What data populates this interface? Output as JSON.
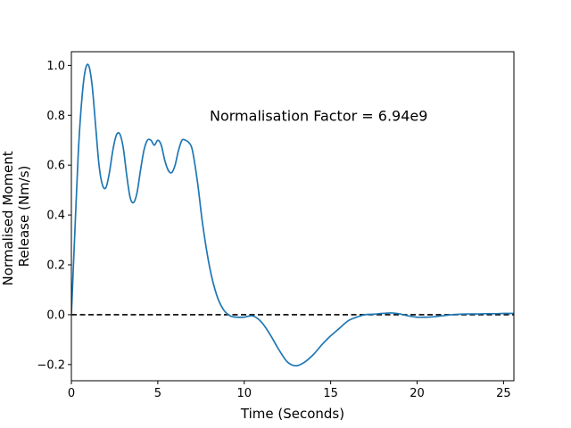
{
  "chart_data": {
    "type": "line",
    "title": "",
    "xlabel": "Time (Seconds)",
    "ylabel_lines": [
      "Normalised Moment",
      "Release (Nm/s)"
    ],
    "xlim": [
      0,
      25.6
    ],
    "ylim": [
      -0.265,
      1.055
    ],
    "xticks": [
      0,
      5,
      10,
      15,
      20,
      25
    ],
    "xtick_labels": [
      "0",
      "5",
      "10",
      "15",
      "20",
      "25"
    ],
    "yticks": [
      -0.2,
      0.0,
      0.2,
      0.4,
      0.6,
      0.8,
      1.0
    ],
    "ytick_labels": [
      "−0.2",
      "0.0",
      "0.2",
      "0.4",
      "0.6",
      "0.8",
      "1.0"
    ],
    "grid": false,
    "annotation": {
      "text": "Normalisation Factor = 6.94e9",
      "x": 8.0,
      "y": 0.8
    },
    "reference_line": {
      "y": 0.0,
      "style": "dashed",
      "color": "#000000"
    },
    "series": [
      {
        "color": "#1f77b4",
        "x": [
          0,
          0.2,
          0.4,
          0.6,
          0.8,
          1.0,
          1.2,
          1.4,
          1.6,
          1.8,
          2.0,
          2.2,
          2.4,
          2.6,
          2.8,
          3.0,
          3.2,
          3.4,
          3.6,
          3.8,
          4.0,
          4.2,
          4.4,
          4.6,
          4.8,
          5.0,
          5.2,
          5.4,
          5.6,
          5.8,
          6.0,
          6.2,
          6.4,
          6.6,
          6.8,
          7.0,
          7.3,
          7.6,
          8.0,
          8.4,
          8.8,
          9.2,
          9.6,
          10.0,
          10.5,
          11.0,
          11.5,
          12.0,
          12.5,
          13.0,
          13.5,
          14.0,
          14.5,
          15.0,
          15.5,
          16.0,
          16.5,
          17.0,
          17.5,
          18.0,
          18.5,
          19.0,
          19.5,
          20.0,
          20.5,
          21.0,
          21.5,
          22.0,
          22.5,
          23.0,
          23.5,
          24.0,
          24.5,
          25.0,
          25.6
        ],
        "y": [
          0.0,
          0.33,
          0.65,
          0.86,
          0.98,
          1.0,
          0.92,
          0.76,
          0.6,
          0.52,
          0.51,
          0.57,
          0.66,
          0.72,
          0.725,
          0.67,
          0.56,
          0.47,
          0.45,
          0.49,
          0.58,
          0.66,
          0.7,
          0.7,
          0.68,
          0.7,
          0.68,
          0.62,
          0.58,
          0.57,
          0.6,
          0.66,
          0.7,
          0.7,
          0.69,
          0.66,
          0.53,
          0.36,
          0.19,
          0.08,
          0.02,
          -0.005,
          -0.01,
          -0.01,
          -0.005,
          -0.03,
          -0.08,
          -0.14,
          -0.19,
          -0.205,
          -0.19,
          -0.16,
          -0.12,
          -0.085,
          -0.055,
          -0.025,
          -0.01,
          0.0,
          0.002,
          0.005,
          0.007,
          0.003,
          -0.005,
          -0.01,
          -0.01,
          -0.008,
          -0.004,
          0.0,
          0.002,
          0.003,
          0.003,
          0.004,
          0.004,
          0.005,
          0.005
        ]
      }
    ]
  }
}
